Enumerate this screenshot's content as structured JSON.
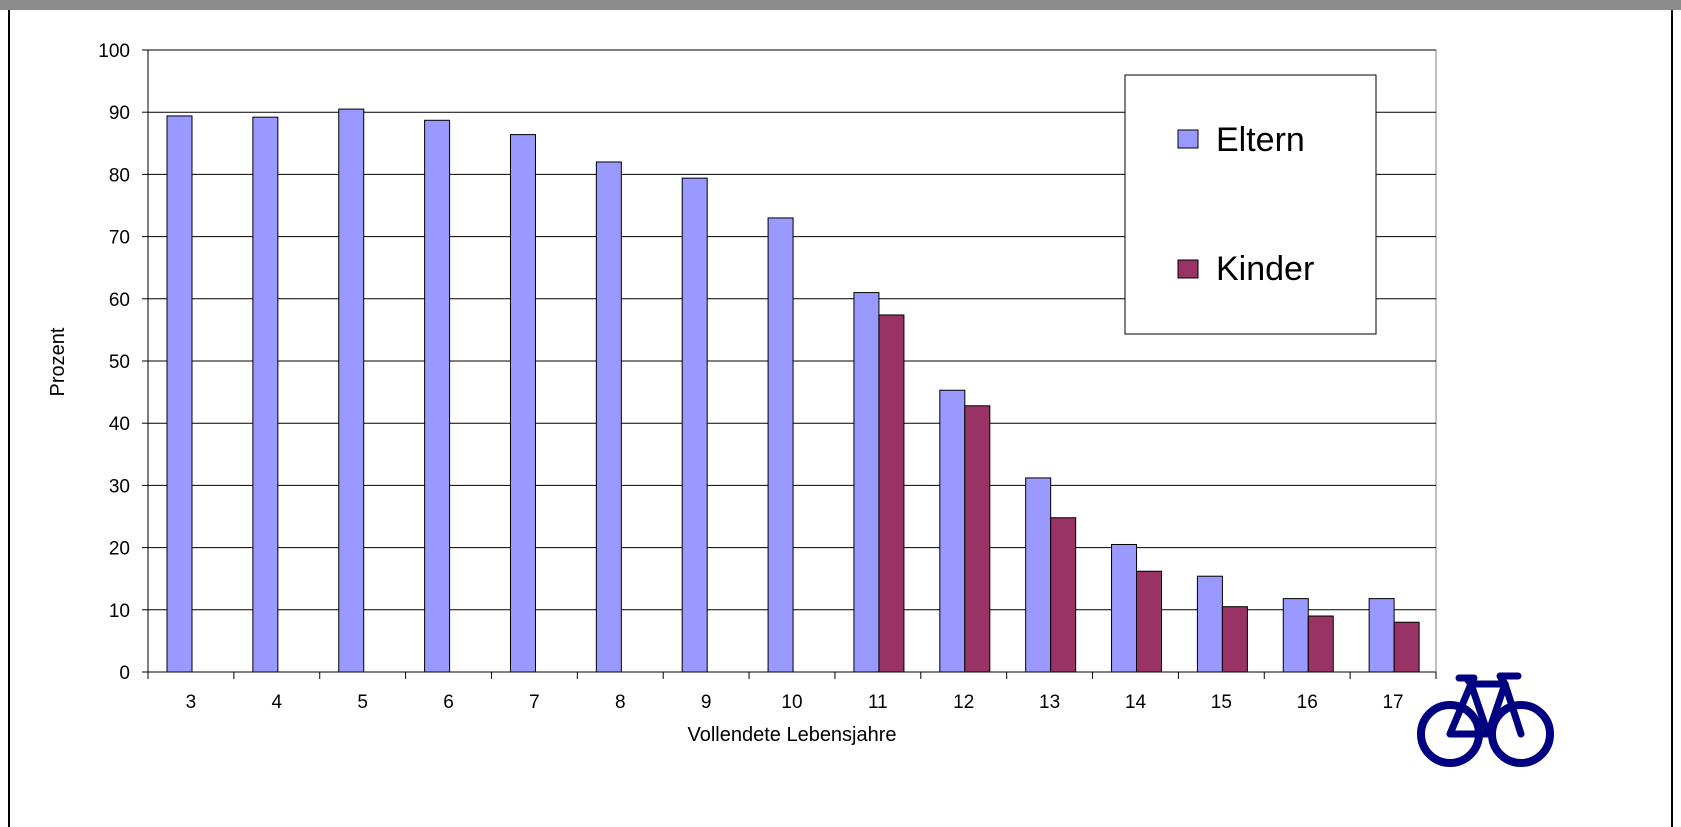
{
  "chart_data": {
    "type": "bar",
    "title": "",
    "xlabel": "Vollendete Lebensjahre",
    "ylabel": "Prozent",
    "ylim": [
      0,
      100
    ],
    "yticks": [
      0,
      10,
      20,
      30,
      40,
      50,
      60,
      70,
      80,
      90,
      100
    ],
    "grid": true,
    "legend_position": "top-right",
    "categories": [
      "3",
      "4",
      "5",
      "6",
      "7",
      "8",
      "9",
      "10",
      "11",
      "12",
      "13",
      "14",
      "15",
      "16",
      "17"
    ],
    "series": [
      {
        "name": "Eltern",
        "color": "#9999ff",
        "values": [
          89.4,
          89.2,
          90.5,
          88.7,
          86.4,
          82.0,
          79.4,
          73.0,
          61.0,
          45.3,
          31.2,
          20.5,
          15.4,
          11.8,
          11.8
        ]
      },
      {
        "name": "Kinder",
        "color": "#993366",
        "values": [
          null,
          null,
          null,
          null,
          null,
          null,
          null,
          null,
          57.4,
          42.8,
          24.8,
          16.2,
          10.5,
          9.0,
          8.0
        ]
      }
    ]
  },
  "logo": {
    "icon": "bicycle-icon",
    "color": "#000080"
  }
}
